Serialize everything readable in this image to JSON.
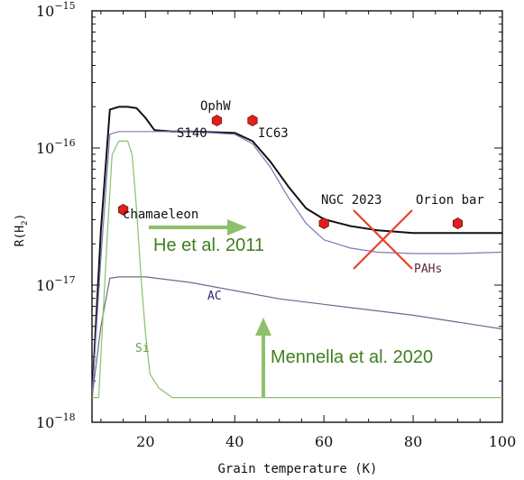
{
  "chart_data": {
    "type": "line",
    "xlabel": "Grain temperature (K)",
    "ylabel_main": "R(H",
    "ylabel_sub": "2",
    "ylabel_close": ")",
    "xlim": [
      8,
      100
    ],
    "ylim_log10": [
      -18,
      -15
    ],
    "y_scale": "log",
    "grid": false,
    "x_ticks": [
      {
        "value": 20,
        "label": "20"
      },
      {
        "value": 40,
        "label": "40"
      },
      {
        "value": 60,
        "label": "60"
      },
      {
        "value": 80,
        "label": "80"
      },
      {
        "value": 100,
        "label": "100"
      }
    ],
    "y_ticks": [
      {
        "value": -18,
        "label": "10",
        "exp": "−18"
      },
      {
        "value": -17,
        "label": "10",
        "exp": "−17"
      },
      {
        "value": -16,
        "label": "10",
        "exp": "−16"
      },
      {
        "value": -15,
        "label": "10",
        "exp": "−15"
      }
    ],
    "series": [
      {
        "id": "total",
        "color": "#111111",
        "points": [
          [
            8,
            -17.82
          ],
          [
            10,
            -16.6
          ],
          [
            12,
            -15.72
          ],
          [
            14,
            -15.7
          ],
          [
            16,
            -15.7
          ],
          [
            18,
            -15.71
          ],
          [
            20,
            -15.78
          ],
          [
            22,
            -15.87
          ],
          [
            26,
            -15.88
          ],
          [
            30,
            -15.88
          ],
          [
            40,
            -15.89
          ],
          [
            44,
            -15.95
          ],
          [
            48,
            -16.1
          ],
          [
            52,
            -16.28
          ],
          [
            56,
            -16.44
          ],
          [
            60,
            -16.52
          ],
          [
            66,
            -16.57
          ],
          [
            72,
            -16.6
          ],
          [
            80,
            -16.62
          ],
          [
            90,
            -16.62
          ],
          [
            100,
            -16.62
          ]
        ]
      },
      {
        "id": "pahs",
        "color": "#7b78b8",
        "points": [
          [
            8,
            -17.82
          ],
          [
            10,
            -16.8
          ],
          [
            12,
            -15.9
          ],
          [
            14,
            -15.88
          ],
          [
            20,
            -15.88
          ],
          [
            30,
            -15.88
          ],
          [
            40,
            -15.9
          ],
          [
            44,
            -15.97
          ],
          [
            48,
            -16.14
          ],
          [
            52,
            -16.36
          ],
          [
            56,
            -16.55
          ],
          [
            60,
            -16.67
          ],
          [
            66,
            -16.73
          ],
          [
            72,
            -16.76
          ],
          [
            80,
            -16.77
          ],
          [
            90,
            -16.77
          ],
          [
            100,
            -16.76
          ]
        ]
      },
      {
        "id": "ac",
        "color": "#6a6a8a",
        "points": [
          [
            8,
            -17.82
          ],
          [
            10,
            -17.3
          ],
          [
            12,
            -16.95
          ],
          [
            14,
            -16.94
          ],
          [
            20,
            -16.94
          ],
          [
            30,
            -16.98
          ],
          [
            40,
            -17.04
          ],
          [
            50,
            -17.1
          ],
          [
            60,
            -17.14
          ],
          [
            70,
            -17.18
          ],
          [
            80,
            -17.22
          ],
          [
            90,
            -17.27
          ],
          [
            100,
            -17.32
          ]
        ]
      },
      {
        "id": "si",
        "color": "#8cc06a",
        "points": [
          [
            8,
            -17.82
          ],
          [
            9.5,
            -17.82
          ],
          [
            10.5,
            -17.2
          ],
          [
            11.5,
            -16.6
          ],
          [
            12.5,
            -16.05
          ],
          [
            14,
            -15.95
          ],
          [
            16,
            -15.95
          ],
          [
            17,
            -16.05
          ],
          [
            18,
            -16.45
          ],
          [
            19,
            -16.95
          ],
          [
            20,
            -17.35
          ],
          [
            21,
            -17.65
          ],
          [
            23,
            -17.75
          ],
          [
            26,
            -17.82
          ],
          [
            30,
            -17.82
          ],
          [
            40,
            -17.82
          ],
          [
            60,
            -17.82
          ],
          [
            80,
            -17.82
          ],
          [
            100,
            -17.82
          ]
        ]
      }
    ],
    "observations": [
      {
        "id": "chamaeleon",
        "label": "chamaeleon",
        "x": 15,
        "y": -16.45
      },
      {
        "id": "s140",
        "label": "S140",
        "x": 36,
        "y": -15.8
      },
      {
        "id": "ic63",
        "label": "IC63",
        "x": 44,
        "y": -15.8
      },
      {
        "id": "ngc2023",
        "label": "NGC 2023",
        "x": 60,
        "y": -16.55
      },
      {
        "id": "orion-bar",
        "label": "Orion bar",
        "x": 90,
        "y": -16.55
      }
    ],
    "extra_label": "OphW",
    "curve_labels": {
      "pahs": "PAHs",
      "ac": "AC",
      "si": "Si"
    },
    "annotations": {
      "he": "He et al. 2011",
      "mennella": "Mennella et al. 2020"
    },
    "colors": {
      "annotation": "#3f7f1f",
      "arrow": "#8cc06a",
      "marker": "#e0201a",
      "cross": "#e8402a"
    }
  }
}
